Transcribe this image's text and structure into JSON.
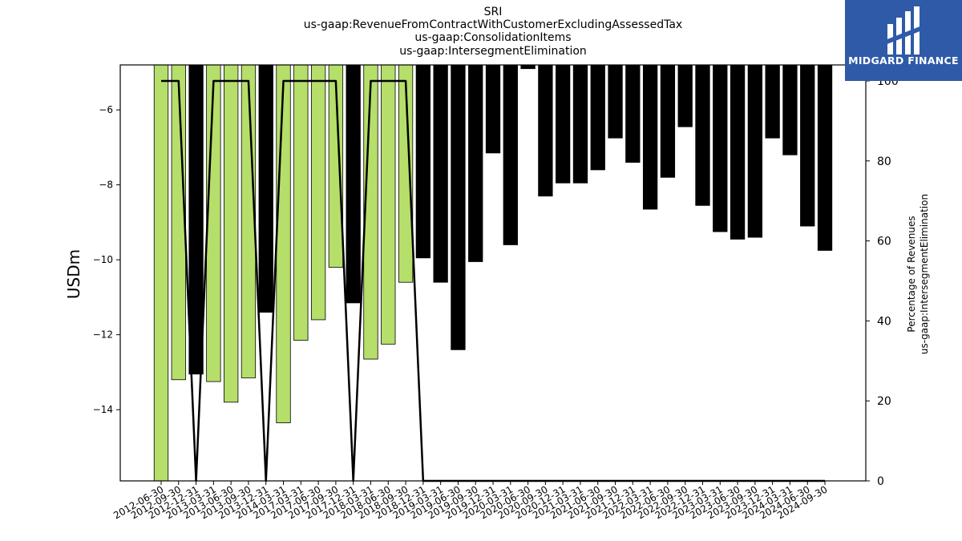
{
  "title_lines": [
    "SRI",
    "us-gaap:RevenueFromContractWithCustomerExcludingAssessedTax",
    "us-gaap:ConsolidationItems",
    "us-gaap:IntersegmentElimination"
  ],
  "logo": {
    "text": "MIDGARD FINANCE",
    "background": "#2f5aa8"
  },
  "chart_data": {
    "type": "bar",
    "ylabel": "USDm",
    "y2label_lines": [
      "Percentage of Revenues",
      "us-gaap:IntersegmentElimination"
    ],
    "ylim": [
      -15.9,
      -4.8
    ],
    "y2lim": [
      0,
      104
    ],
    "yticks": [
      -6,
      -8,
      -10,
      -12,
      -14
    ],
    "y2ticks": [
      0,
      20,
      40,
      60,
      80,
      100
    ],
    "colors": {
      "positive_pct": "#b5de6b",
      "zero_pct": "#000000",
      "line": "#000000"
    },
    "categories": [
      "2012-06-30",
      "2012-09-30",
      "2012-12-31",
      "2013-03-31",
      "2013-06-30",
      "2013-09-30",
      "2013-12-31",
      "2014-03-31",
      "2017-03-31",
      "2017-06-30",
      "2017-09-30",
      "2017-12-31",
      "2018-03-31",
      "2018-06-30",
      "2018-09-30",
      "2018-12-31",
      "2019-03-31",
      "2019-06-30",
      "2019-09-30",
      "2019-12-31",
      "2020-03-31",
      "2020-06-30",
      "2020-09-30",
      "2020-12-31",
      "2021-03-31",
      "2021-06-30",
      "2021-09-30",
      "2021-12-31",
      "2022-03-31",
      "2022-06-30",
      "2022-09-30",
      "2022-12-31",
      "2023-03-31",
      "2023-06-30",
      "2023-09-30",
      "2023-12-31",
      "2024-03-31",
      "2024-06-30",
      "2024-09-30"
    ],
    "series": [
      {
        "kind": "bar",
        "values": [
          -15.9,
          -13.2,
          -13.05,
          -13.25,
          -13.8,
          -13.15,
          -11.4,
          -14.35,
          -12.15,
          -11.6,
          -10.2,
          -11.15,
          -12.65,
          -12.25,
          -10.6,
          -9.95,
          -10.6,
          -12.4,
          -10.05,
          -7.15,
          -9.6,
          -4.9,
          -8.3,
          -7.95,
          -7.95,
          -7.6,
          -6.75,
          -7.4,
          -8.65,
          -7.8,
          -6.45,
          -8.55,
          -9.25,
          -9.45,
          -9.4,
          -6.75,
          -7.2,
          -9.1,
          -9.75
        ]
      },
      {
        "kind": "line",
        "axis": "right",
        "values": [
          100,
          100,
          0,
          100,
          100,
          100,
          0,
          100,
          100,
          100,
          100,
          0,
          100,
          100,
          100,
          0,
          0,
          0,
          0,
          0,
          0,
          0,
          0,
          0,
          0,
          0,
          0,
          0,
          0,
          0,
          0,
          0,
          0,
          0,
          0,
          0,
          0,
          0,
          0
        ]
      }
    ]
  }
}
